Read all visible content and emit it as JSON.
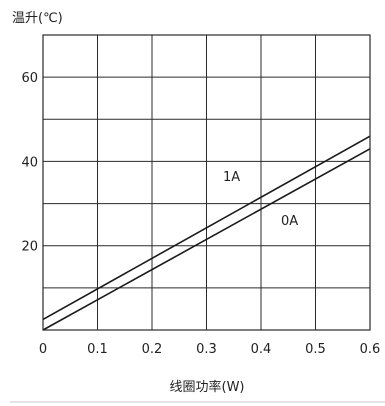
{
  "chart_data": {
    "type": "line",
    "ylabel": "温升(℃)",
    "xlabel": "线圈功率(W)",
    "xlim": [
      0,
      0.6
    ],
    "ylim": [
      0,
      70
    ],
    "x_ticks": [
      0,
      0.1,
      0.2,
      0.3,
      0.4,
      0.5,
      0.6
    ],
    "x_tick_labels": [
      "0",
      "0.1",
      "0.2",
      "0.3",
      "0.4",
      "0.5",
      "0.6"
    ],
    "y_ticks": [
      20,
      40,
      60
    ],
    "y_tick_labels": [
      "20",
      "40",
      "60"
    ],
    "grid": true,
    "series": [
      {
        "name": "1A",
        "x": [
          0,
          0.6
        ],
        "y": [
          2.5,
          46
        ]
      },
      {
        "name": "0A",
        "x": [
          0,
          0.6
        ],
        "y": [
          0,
          43
        ]
      }
    ]
  }
}
